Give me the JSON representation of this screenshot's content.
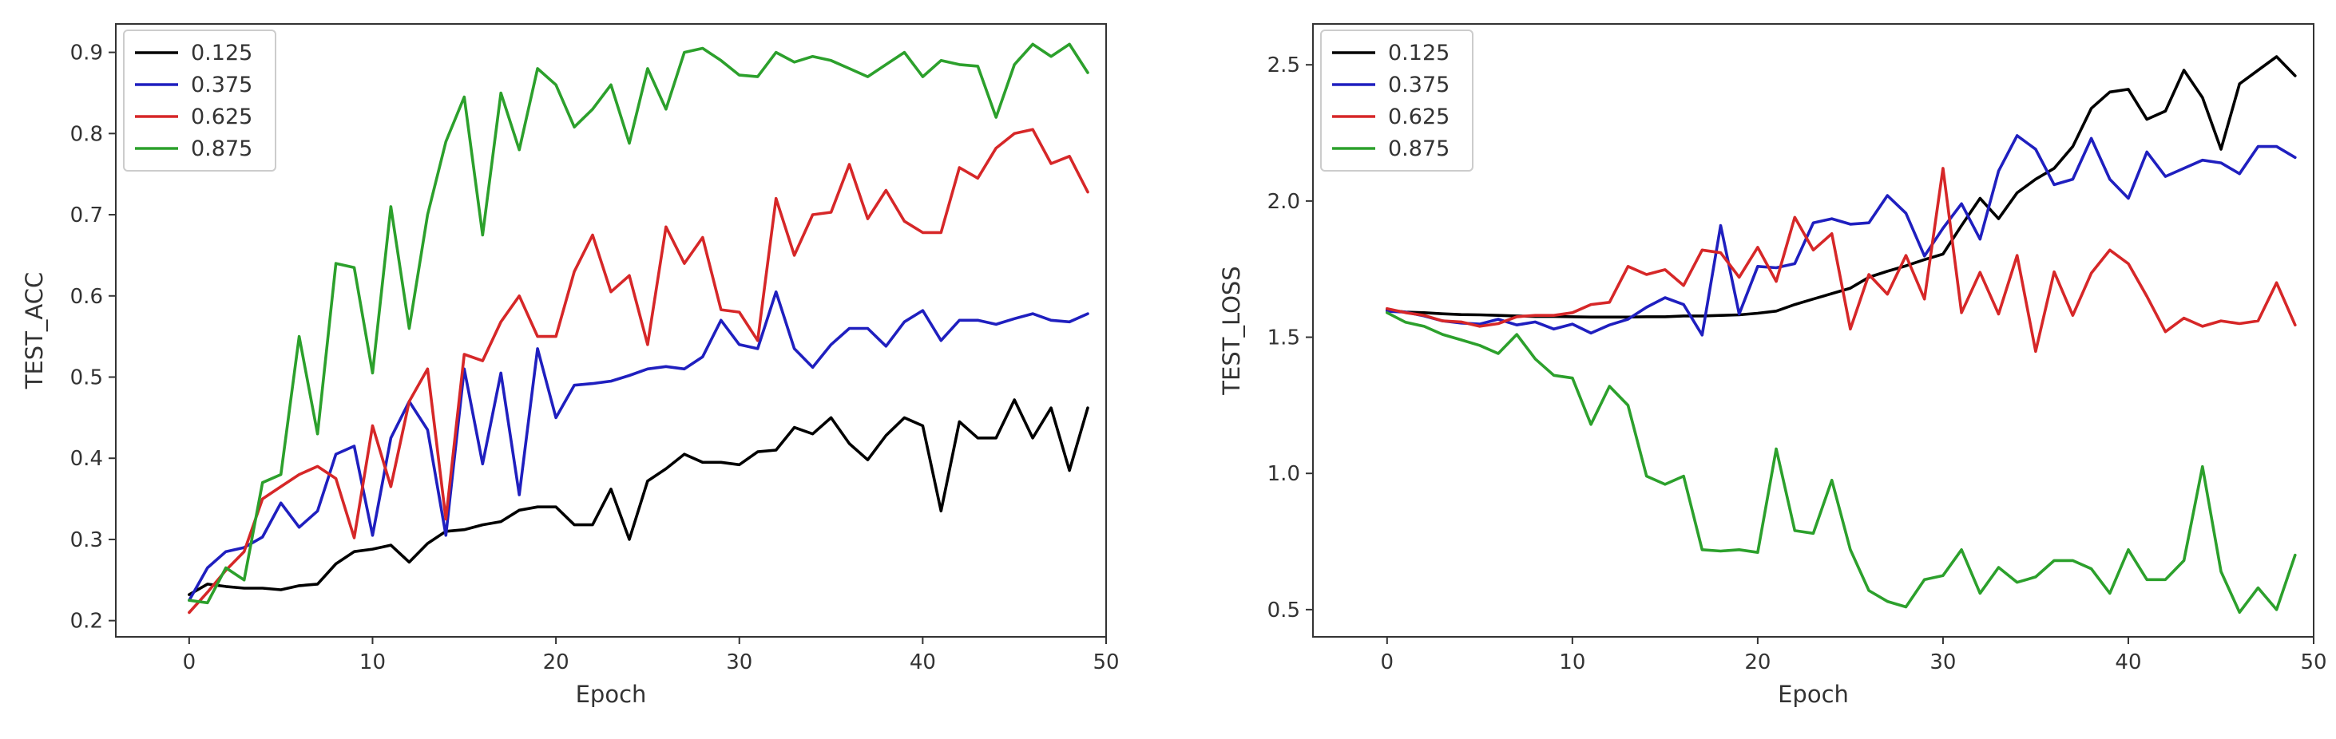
{
  "chart_data": [
    {
      "type": "line",
      "title": "",
      "xlabel": "Epoch",
      "ylabel": "TEST_ACC",
      "xlim": [
        -4,
        50
      ],
      "ylim": [
        0.18,
        0.935
      ],
      "xticks": [
        "0",
        "10",
        "20",
        "30",
        "40",
        "50"
      ],
      "yticks": [
        "0.2",
        "0.3",
        "0.4",
        "0.5",
        "0.6",
        "0.7",
        "0.8",
        "0.9"
      ],
      "legend_position": "top-left",
      "grid": false,
      "series": [
        {
          "name": "0.125",
          "color": "#000000",
          "values": [
            0.232,
            0.245,
            0.242,
            0.24,
            0.24,
            0.238,
            0.243,
            0.245,
            0.27,
            0.285,
            0.288,
            0.293,
            0.272,
            0.295,
            0.31,
            0.312,
            0.318,
            0.322,
            0.336,
            0.34,
            0.34,
            0.318,
            0.318,
            0.362,
            0.3,
            0.372,
            0.387,
            0.405,
            0.395,
            0.395,
            0.392,
            0.408,
            0.41,
            0.438,
            0.43,
            0.45,
            0.418,
            0.398,
            0.428,
            0.45,
            0.44,
            0.335,
            0.445,
            0.425,
            0.425,
            0.472,
            0.425,
            0.462,
            0.385,
            0.462
          ]
        },
        {
          "name": "0.375",
          "color": "#1f1fbf",
          "values": [
            0.225,
            0.265,
            0.285,
            0.29,
            0.303,
            0.345,
            0.315,
            0.335,
            0.405,
            0.415,
            0.305,
            0.425,
            0.47,
            0.435,
            0.305,
            0.51,
            0.393,
            0.505,
            0.355,
            0.535,
            0.45,
            0.49,
            0.492,
            0.495,
            0.502,
            0.51,
            0.513,
            0.51,
            0.525,
            0.57,
            0.54,
            0.535,
            0.605,
            0.535,
            0.512,
            0.54,
            0.56,
            0.56,
            0.538,
            0.568,
            0.582,
            0.545,
            0.57,
            0.57,
            0.565,
            0.572,
            0.578,
            0.57,
            0.568,
            0.578
          ]
        },
        {
          "name": "0.625",
          "color": "#d62728",
          "values": [
            0.21,
            0.235,
            0.262,
            0.285,
            0.35,
            0.365,
            0.38,
            0.39,
            0.375,
            0.302,
            0.44,
            0.365,
            0.47,
            0.51,
            0.325,
            0.528,
            0.52,
            0.568,
            0.6,
            0.55,
            0.55,
            0.63,
            0.675,
            0.605,
            0.625,
            0.54,
            0.685,
            0.64,
            0.672,
            0.583,
            0.58,
            0.545,
            0.72,
            0.65,
            0.7,
            0.703,
            0.762,
            0.695,
            0.73,
            0.692,
            0.678,
            0.678,
            0.758,
            0.745,
            0.782,
            0.8,
            0.805,
            0.763,
            0.772,
            0.728
          ]
        },
        {
          "name": "0.875",
          "color": "#2ca02c",
          "values": [
            0.225,
            0.222,
            0.265,
            0.25,
            0.37,
            0.38,
            0.55,
            0.43,
            0.64,
            0.635,
            0.505,
            0.71,
            0.56,
            0.7,
            0.79,
            0.845,
            0.675,
            0.85,
            0.78,
            0.88,
            0.86,
            0.808,
            0.83,
            0.86,
            0.788,
            0.88,
            0.83,
            0.9,
            0.905,
            0.89,
            0.872,
            0.87,
            0.9,
            0.888,
            0.895,
            0.89,
            0.88,
            0.87,
            0.885,
            0.9,
            0.87,
            0.89,
            0.885,
            0.883,
            0.82,
            0.885,
            0.91,
            0.895,
            0.91,
            0.875
          ]
        }
      ]
    },
    {
      "type": "line",
      "title": "",
      "xlabel": "Epoch",
      "ylabel": "TEST_LOSS",
      "xlim": [
        -4,
        50
      ],
      "ylim": [
        0.4,
        2.65
      ],
      "xticks": [
        "0",
        "10",
        "20",
        "30",
        "40",
        "50"
      ],
      "yticks": [
        "0.5",
        "1.0",
        "1.5",
        "2.0",
        "2.5"
      ],
      "legend_position": "top-left",
      "grid": false,
      "series": [
        {
          "name": "0.125",
          "color": "#000000",
          "values": [
            1.6,
            1.592,
            1.59,
            1.586,
            1.583,
            1.582,
            1.58,
            1.578,
            1.576,
            1.576,
            1.575,
            1.574,
            1.574,
            1.574,
            1.575,
            1.575,
            1.578,
            1.578,
            1.58,
            1.582,
            1.588,
            1.596,
            1.62,
            1.64,
            1.66,
            1.68,
            1.72,
            1.742,
            1.762,
            1.785,
            1.805,
            1.91,
            2.01,
            1.935,
            2.03,
            2.08,
            2.12,
            2.2,
            2.34,
            2.4,
            2.41,
            2.3,
            2.33,
            2.48,
            2.38,
            2.19,
            2.43,
            2.48,
            2.53,
            2.46
          ]
        },
        {
          "name": "0.375",
          "color": "#1f1fbf",
          "values": [
            1.595,
            1.592,
            1.578,
            1.56,
            1.552,
            1.548,
            1.566,
            1.545,
            1.556,
            1.53,
            1.548,
            1.515,
            1.545,
            1.566,
            1.61,
            1.645,
            1.62,
            1.508,
            1.91,
            1.585,
            1.76,
            1.755,
            1.77,
            1.92,
            1.935,
            1.915,
            1.92,
            2.02,
            1.955,
            1.798,
            1.9,
            1.99,
            1.86,
            2.11,
            2.24,
            2.19,
            2.06,
            2.08,
            2.23,
            2.08,
            2.01,
            2.18,
            2.09,
            2.12,
            2.15,
            2.14,
            2.1,
            2.2,
            2.2,
            2.16
          ]
        },
        {
          "name": "0.625",
          "color": "#d62728",
          "values": [
            1.605,
            1.59,
            1.58,
            1.56,
            1.556,
            1.54,
            1.55,
            1.575,
            1.58,
            1.58,
            1.59,
            1.62,
            1.628,
            1.76,
            1.73,
            1.748,
            1.69,
            1.82,
            1.81,
            1.72,
            1.83,
            1.705,
            1.94,
            1.82,
            1.88,
            1.53,
            1.73,
            1.658,
            1.8,
            1.64,
            2.12,
            1.59,
            1.738,
            1.585,
            1.8,
            1.448,
            1.74,
            1.58,
            1.735,
            1.82,
            1.77,
            1.65,
            1.52,
            1.57,
            1.54,
            1.56,
            1.55,
            1.56,
            1.7,
            1.545
          ]
        },
        {
          "name": "0.875",
          "color": "#2ca02c",
          "values": [
            1.59,
            1.555,
            1.54,
            1.51,
            1.49,
            1.47,
            1.44,
            1.51,
            1.42,
            1.36,
            1.35,
            1.18,
            1.32,
            1.25,
            0.99,
            0.96,
            0.99,
            0.72,
            0.715,
            0.72,
            0.71,
            1.09,
            0.79,
            0.78,
            0.975,
            0.72,
            0.57,
            0.53,
            0.51,
            0.61,
            0.625,
            0.72,
            0.56,
            0.655,
            0.6,
            0.62,
            0.68,
            0.68,
            0.65,
            0.56,
            0.72,
            0.61,
            0.61,
            0.68,
            1.025,
            0.64,
            0.49,
            0.58,
            0.5,
            0.7
          ]
        }
      ]
    }
  ]
}
